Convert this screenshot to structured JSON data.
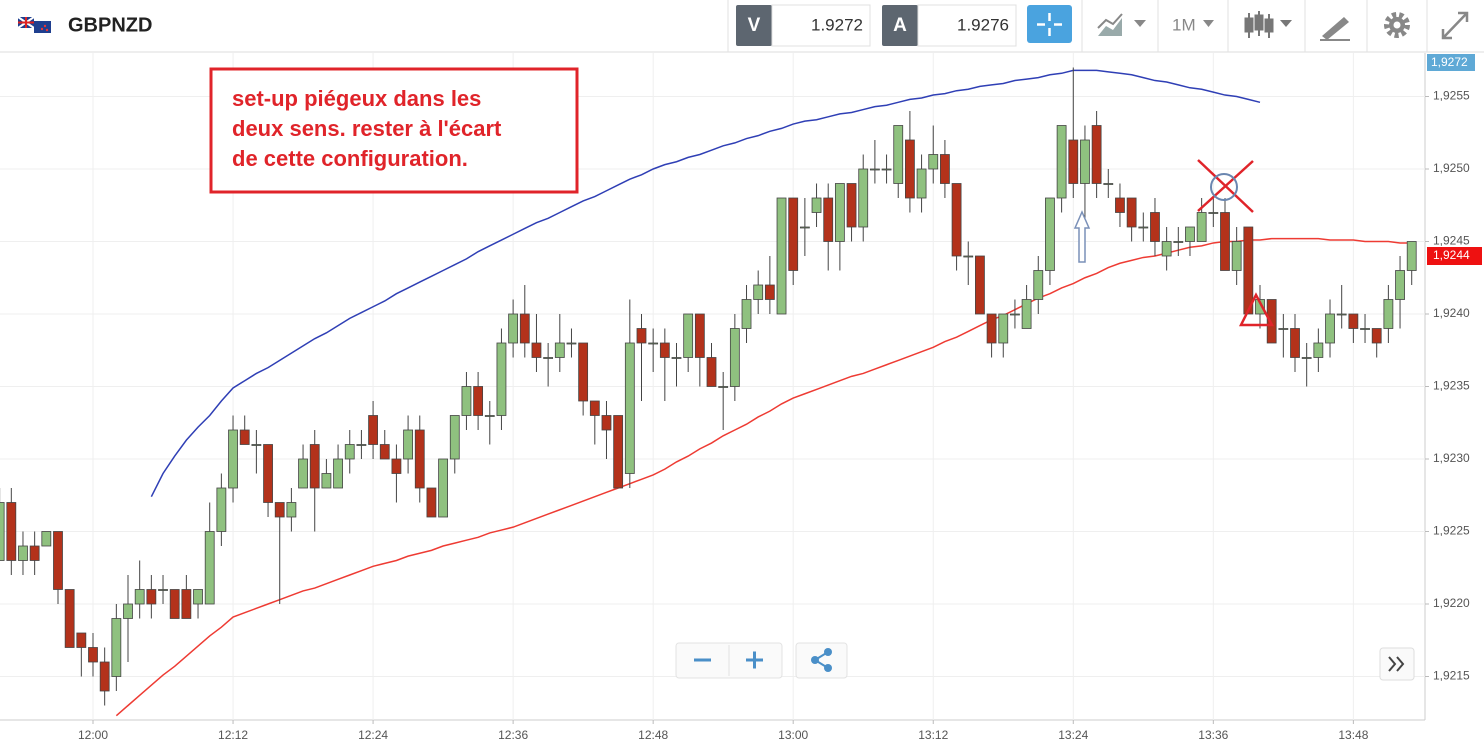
{
  "header": {
    "symbol": "GBPNZD",
    "bid_label": "V",
    "bid": 1.9272,
    "ask_label": "A",
    "ask": 1.9276,
    "timeframe": "1M"
  },
  "chart_data": {
    "type": "candlestick",
    "annotation": [
      "set-up piégeux dans les",
      "deux sens. rester à l'écart",
      "de cette configuration."
    ],
    "up_color": "#8fc17f",
    "down_color": "#b3321b",
    "grid": true,
    "ylim": [
      1.9212,
      1.9258
    ],
    "yticks": [
      {
        "value": 1.9215,
        "label": "1,9215"
      },
      {
        "value": 1.922,
        "label": "1,9220"
      },
      {
        "value": 1.9225,
        "label": "1,9225"
      },
      {
        "value": 1.923,
        "label": "1,9230"
      },
      {
        "value": 1.9235,
        "label": "1,9235"
      },
      {
        "value": 1.924,
        "label": "1,9240"
      },
      {
        "value": 1.9245,
        "label": "1,9245"
      },
      {
        "value": 1.925,
        "label": "1,9250"
      },
      {
        "value": 1.9255,
        "label": "1,9255"
      }
    ],
    "price_tag": {
      "value": 1.9244,
      "label": "1,9244"
    },
    "top_tag": "1,9272",
    "categories": [
      null,
      null,
      null,
      null,
      null,
      null,
      null,
      null,
      "12:00",
      null,
      null,
      null,
      null,
      null,
      null,
      null,
      null,
      null,
      null,
      null,
      "12:12",
      null,
      null,
      null,
      null,
      null,
      null,
      null,
      null,
      null,
      null,
      null,
      "12:24",
      null,
      null,
      null,
      null,
      null,
      null,
      null,
      null,
      null,
      null,
      null,
      "12:36",
      null,
      null,
      null,
      null,
      null,
      null,
      null,
      null,
      null,
      null,
      null,
      "12:48",
      null,
      null,
      null,
      null,
      null,
      null,
      null,
      null,
      null,
      null,
      null,
      "13:00",
      null,
      null,
      null,
      null,
      null,
      null,
      null,
      null,
      null,
      null,
      null,
      "13:12",
      null,
      null,
      null,
      null,
      null,
      null,
      null,
      null,
      null,
      null,
      null,
      "13:24",
      null,
      null,
      null,
      null,
      null,
      null,
      null,
      null,
      null,
      null,
      null,
      "13:36",
      null,
      null,
      null,
      null,
      null,
      null,
      null,
      null,
      null,
      null,
      null,
      "13:48",
      null,
      null,
      null,
      null,
      null
    ],
    "open": [
      1.9223,
      1.9227,
      1.9223,
      1.9224,
      1.9224,
      1.9225,
      1.9221,
      1.9218,
      1.9217,
      1.9216,
      1.9215,
      1.9219,
      1.922,
      1.9221,
      1.9221,
      1.9221,
      1.9221,
      1.922,
      1.922,
      1.9225,
      1.9228,
      1.9232,
      1.9231,
      1.9231,
      1.9227,
      1.9226,
      1.9228,
      1.9231,
      1.9228,
      1.9228,
      1.923,
      1.9231,
      1.9233,
      1.9231,
      1.923,
      1.923,
      1.9232,
      1.9228,
      1.9226,
      1.923,
      1.9233,
      1.9235,
      1.9233,
      1.9233,
      1.9238,
      1.924,
      1.9238,
      1.9237,
      1.9237,
      1.9238,
      1.9238,
      1.9234,
      1.9233,
      1.9233,
      1.9229,
      1.9239,
      1.9238,
      1.9238,
      1.9237,
      1.9237,
      1.924,
      1.9237,
      1.9235,
      1.9235,
      1.9239,
      1.9241,
      1.9242,
      1.924,
      1.9248,
      1.9246,
      1.9247,
      1.9248,
      1.9245,
      1.9249,
      1.9246,
      1.925,
      1.925,
      1.9249,
      1.9252,
      1.9248,
      1.925,
      1.9251,
      1.9249,
      1.9244,
      1.9244,
      1.924,
      1.9238,
      1.924,
      1.9239,
      1.9241,
      1.9243,
      1.9248,
      1.9252,
      1.9249,
      1.9253,
      1.9249,
      1.9248,
      1.9248,
      1.9246,
      1.9247,
      1.9244,
      1.9245,
      1.9245,
      1.9245,
      1.9247,
      1.9247,
      1.9243,
      1.9246,
      1.924,
      1.9241,
      1.9239,
      1.9239,
      1.9237,
      1.9237,
      1.9238,
      1.924,
      1.924,
      1.9239,
      1.9239,
      1.9239,
      1.9241,
      1.9243
    ],
    "high": [
      1.9228,
      1.9228,
      1.9225,
      1.9225,
      1.9225,
      1.9225,
      1.9221,
      1.9218,
      1.9218,
      1.9217,
      1.922,
      1.9222,
      1.9223,
      1.9222,
      1.9222,
      1.9221,
      1.9222,
      1.9221,
      1.9227,
      1.9229,
      1.9233,
      1.9233,
      1.9232,
      1.9231,
      1.9227,
      1.9228,
      1.9231,
      1.9232,
      1.923,
      1.9231,
      1.9232,
      1.9232,
      1.9234,
      1.9232,
      1.9231,
      1.9233,
      1.9233,
      1.9228,
      1.923,
      1.9233,
      1.9236,
      1.9236,
      1.9234,
      1.9239,
      1.9241,
      1.9242,
      1.924,
      1.9238,
      1.924,
      1.9239,
      1.9238,
      1.9234,
      1.9234,
      1.9233,
      1.9241,
      1.924,
      1.9239,
      1.9239,
      1.9238,
      1.924,
      1.924,
      1.9238,
      1.9236,
      1.924,
      1.9242,
      1.9243,
      1.9244,
      1.9248,
      1.9248,
      1.9248,
      1.9249,
      1.9249,
      1.9249,
      1.9249,
      1.9251,
      1.9252,
      1.9251,
      1.9253,
      1.9254,
      1.9251,
      1.9253,
      1.9252,
      1.9249,
      1.9245,
      1.9244,
      1.924,
      1.924,
      1.9241,
      1.9242,
      1.9244,
      1.9248,
      1.9253,
      1.9257,
      1.9253,
      1.9254,
      1.925,
      1.9249,
      1.9248,
      1.9247,
      1.9248,
      1.9246,
      1.9246,
      1.9246,
      1.9248,
      1.9248,
      1.9248,
      1.9246,
      1.9246,
      1.9242,
      1.9241,
      1.924,
      1.924,
      1.9238,
      1.9239,
      1.9241,
      1.9242,
      1.924,
      1.924,
      1.9239,
      1.9242,
      1.9244,
      1.9245
    ],
    "low": [
      1.9223,
      1.9222,
      1.9222,
      1.9222,
      1.9224,
      1.922,
      1.9217,
      1.9215,
      1.9215,
      1.9213,
      1.9214,
      1.9216,
      1.9219,
      1.9219,
      1.922,
      1.9219,
      1.9219,
      1.9219,
      1.922,
      1.9224,
      1.9227,
      1.9231,
      1.9229,
      1.9226,
      1.922,
      1.9225,
      1.9228,
      1.9225,
      1.9228,
      1.9228,
      1.9229,
      1.923,
      1.923,
      1.923,
      1.9227,
      1.9229,
      1.9227,
      1.9226,
      1.9226,
      1.9229,
      1.9232,
      1.9232,
      1.9231,
      1.9232,
      1.9237,
      1.9237,
      1.9236,
      1.9235,
      1.9236,
      1.9237,
      1.9233,
      1.9231,
      1.923,
      1.9228,
      1.9228,
      1.9234,
      1.9236,
      1.9234,
      1.9235,
      1.9236,
      1.9235,
      1.9235,
      1.9232,
      1.9234,
      1.9238,
      1.924,
      1.924,
      1.924,
      1.9242,
      1.9244,
      1.9246,
      1.9243,
      1.9243,
      1.9245,
      1.9245,
      1.9249,
      1.9249,
      1.9248,
      1.9247,
      1.9247,
      1.9249,
      1.9248,
      1.9243,
      1.9242,
      1.924,
      1.9237,
      1.9237,
      1.9239,
      1.9239,
      1.924,
      1.9242,
      1.9247,
      1.9248,
      1.9246,
      1.9248,
      1.9248,
      1.9246,
      1.9245,
      1.9245,
      1.9244,
      1.9243,
      1.9244,
      1.9244,
      1.9245,
      1.9246,
      1.9243,
      1.9242,
      1.924,
      1.9239,
      1.9238,
      1.9237,
      1.9236,
      1.9235,
      1.9236,
      1.9237,
      1.9239,
      1.9238,
      1.9238,
      1.9237,
      1.9238,
      1.9239,
      1.9242
    ],
    "close": [
      1.9227,
      1.9223,
      1.9224,
      1.9223,
      1.9225,
      1.9221,
      1.9217,
      1.9217,
      1.9216,
      1.9214,
      1.9219,
      1.922,
      1.9221,
      1.922,
      1.9221,
      1.9219,
      1.9219,
      1.9221,
      1.9225,
      1.9228,
      1.9232,
      1.9231,
      1.9231,
      1.9227,
      1.9226,
      1.9227,
      1.923,
      1.9228,
      1.9229,
      1.923,
      1.9231,
      1.9231,
      1.9231,
      1.923,
      1.9229,
      1.9232,
      1.9228,
      1.9226,
      1.923,
      1.9233,
      1.9235,
      1.9233,
      1.9233,
      1.9238,
      1.924,
      1.9238,
      1.9237,
      1.9237,
      1.9238,
      1.9238,
      1.9234,
      1.9233,
      1.9232,
      1.9228,
      1.9238,
      1.9238,
      1.9238,
      1.9237,
      1.9237,
      1.924,
      1.9237,
      1.9235,
      1.9235,
      1.9239,
      1.9241,
      1.9242,
      1.9241,
      1.9248,
      1.9243,
      1.9246,
      1.9248,
      1.9245,
      1.9249,
      1.9246,
      1.925,
      1.925,
      1.925,
      1.9253,
      1.9248,
      1.925,
      1.9251,
      1.9249,
      1.9244,
      1.9244,
      1.924,
      1.9238,
      1.924,
      1.924,
      1.9241,
      1.9243,
      1.9248,
      1.9253,
      1.9249,
      1.9252,
      1.9249,
      1.9249,
      1.9247,
      1.9246,
      1.9246,
      1.9245,
      1.9245,
      1.9245,
      1.9246,
      1.9247,
      1.9247,
      1.9243,
      1.9245,
      1.924,
      1.9241,
      1.9238,
      1.9239,
      1.9237,
      1.9237,
      1.9238,
      1.924,
      1.924,
      1.9239,
      1.9239,
      1.9238,
      1.9241,
      1.9243,
      1.9245
    ],
    "overlays": [
      {
        "color": "#2f3fb5",
        "values": [
          null,
          null,
          null,
          null,
          null,
          null,
          null,
          null,
          null,
          null,
          null,
          null,
          null,
          1.92274,
          1.9229,
          1.92302,
          1.92313,
          1.92322,
          1.9233,
          1.9234,
          1.92349,
          1.92354,
          1.92359,
          1.92363,
          1.92368,
          1.92373,
          1.92378,
          1.92383,
          1.92387,
          1.92392,
          1.92397,
          1.92401,
          1.92405,
          1.92409,
          1.92414,
          1.92418,
          1.92422,
          1.92426,
          1.9243,
          1.92434,
          1.92438,
          1.92443,
          1.92447,
          1.92451,
          1.92455,
          1.92459,
          1.92463,
          1.92466,
          1.9247,
          1.92474,
          1.92478,
          1.92481,
          1.92485,
          1.92489,
          1.92493,
          1.92496,
          1.925,
          1.92503,
          1.92505,
          1.92508,
          1.9251,
          1.92513,
          1.92516,
          1.92518,
          1.92521,
          1.92523,
          1.92526,
          1.92528,
          1.92531,
          1.92533,
          1.92534,
          1.92536,
          1.92538,
          1.92539,
          1.92541,
          1.92543,
          1.92544,
          1.92546,
          1.92548,
          1.92549,
          1.92551,
          1.92552,
          1.92554,
          1.92555,
          1.92557,
          1.92558,
          1.92559,
          1.92561,
          1.92562,
          1.92563,
          1.92565,
          1.92566,
          1.92568,
          1.92568,
          1.92568,
          1.92567,
          1.92566,
          1.92565,
          1.92563,
          1.92561,
          1.9256,
          1.92558,
          1.92556,
          1.92555,
          1.92553,
          1.92551,
          1.9255,
          1.92548,
          1.92546,
          null,
          null,
          null,
          null,
          null,
          null,
          null,
          null,
          null,
          null,
          null,
          null,
          null
        ]
      },
      {
        "color": "#ee3b33",
        "values": [
          null,
          null,
          null,
          null,
          null,
          null,
          null,
          null,
          null,
          null,
          1.92123,
          1.9213,
          1.92137,
          1.92144,
          1.92151,
          1.92157,
          1.92164,
          1.92171,
          1.92178,
          1.92184,
          1.92191,
          1.92194,
          1.92197,
          1.922,
          1.92203,
          1.92206,
          1.92209,
          1.92211,
          1.92214,
          1.92217,
          1.9222,
          1.92223,
          1.92226,
          1.92228,
          1.9223,
          1.92233,
          1.92235,
          1.92237,
          1.9224,
          1.92242,
          1.92244,
          1.92246,
          1.92249,
          1.92251,
          1.92253,
          1.92256,
          1.92259,
          1.92262,
          1.92265,
          1.92268,
          1.92271,
          1.92274,
          1.92277,
          1.9228,
          1.92283,
          1.92286,
          1.92289,
          1.92293,
          1.92298,
          1.92302,
          1.92307,
          1.92311,
          1.92316,
          1.9232,
          1.92324,
          1.92329,
          1.92333,
          1.92338,
          1.92342,
          1.92345,
          1.92348,
          1.92351,
          1.92354,
          1.92357,
          1.92359,
          1.92362,
          1.92365,
          1.92368,
          1.92371,
          1.92374,
          1.92377,
          1.92381,
          1.92384,
          1.92388,
          1.92392,
          1.92396,
          1.92399,
          1.92403,
          1.92407,
          1.92411,
          1.92414,
          1.92418,
          1.92421,
          1.92425,
          1.92428,
          1.92432,
          1.92435,
          1.92437,
          1.92439,
          1.9244,
          1.92442,
          1.92444,
          1.92446,
          1.92447,
          1.92449,
          1.9245,
          1.9245,
          1.92451,
          1.92451,
          1.92452,
          1.92452,
          1.92452,
          1.92452,
          1.92452,
          1.92451,
          1.92451,
          1.92451,
          1.9245,
          1.9245,
          1.9245,
          1.92449,
          1.92449
        ]
      }
    ]
  }
}
